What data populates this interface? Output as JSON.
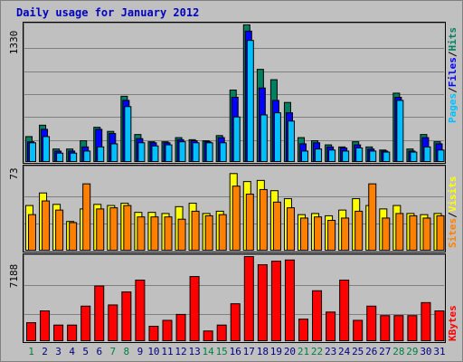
{
  "title": "Daily usage for January 2012",
  "colors": {
    "pages": "#00c0ff",
    "files": "#0000ff",
    "hits": "#008060",
    "visits": "#ffff00",
    "sites": "#ff8000",
    "kbytes": "#ff0000",
    "weekday_label": "#000080",
    "weekend_label": "#008040",
    "separator": "#000000"
  },
  "chart_data": [
    {
      "type": "bar",
      "title": "Pages / Files / Hits",
      "ymax_label": "1330",
      "ylim": [
        0,
        1330
      ],
      "categories": [
        "1",
        "2",
        "3",
        "4",
        "5",
        "6",
        "7",
        "8",
        "9",
        "10",
        "11",
        "12",
        "13",
        "14",
        "15",
        "16",
        "17",
        "18",
        "19",
        "20",
        "21",
        "22",
        "23",
        "24",
        "25",
        "26",
        "27",
        "28",
        "29",
        "30",
        "31"
      ],
      "weekend_days": [
        "1",
        "7",
        "8",
        "14",
        "15",
        "21",
        "22",
        "28",
        "29"
      ],
      "series": [
        {
          "name": "Hits",
          "values": [
            250,
            360,
            130,
            130,
            210,
            340,
            300,
            640,
            270,
            200,
            200,
            240,
            220,
            210,
            260,
            700,
            1330,
            900,
            800,
            580,
            240,
            210,
            170,
            150,
            200,
            150,
            120,
            670,
            130,
            270,
            200
          ]
        },
        {
          "name": "Files",
          "values": [
            200,
            320,
            110,
            110,
            150,
            320,
            280,
            600,
            230,
            190,
            190,
            220,
            210,
            200,
            240,
            630,
            1270,
            720,
            600,
            480,
            180,
            190,
            150,
            140,
            170,
            130,
            110,
            630,
            110,
            240,
            180
          ]
        },
        {
          "name": "Pages",
          "values": [
            190,
            250,
            90,
            90,
            110,
            150,
            180,
            540,
            190,
            160,
            170,
            200,
            190,
            190,
            190,
            440,
            1180,
            460,
            480,
            400,
            110,
            130,
            120,
            110,
            140,
            110,
            100,
            600,
            100,
            150,
            120
          ]
        }
      ]
    },
    {
      "type": "bar",
      "title": "Visits / Sites",
      "ymax_label": "73",
      "ylim": [
        0,
        73
      ],
      "categories": [
        "1",
        "2",
        "3",
        "4",
        "5",
        "6",
        "7",
        "8",
        "9",
        "10",
        "11",
        "12",
        "13",
        "14",
        "15",
        "16",
        "17",
        "18",
        "19",
        "20",
        "21",
        "22",
        "23",
        "24",
        "25",
        "26",
        "27",
        "28",
        "29",
        "30",
        "31"
      ],
      "series": [
        {
          "name": "Visits",
          "values": [
            40,
            51,
            41,
            26,
            37,
            41,
            40,
            42,
            34,
            34,
            33,
            39,
            42,
            33,
            35,
            68,
            61,
            62,
            53,
            46,
            32,
            33,
            31,
            36,
            46,
            40,
            37,
            40,
            33,
            32,
            33
          ]
        },
        {
          "name": "Sites",
          "values": [
            32,
            44,
            36,
            25,
            59,
            37,
            38,
            40,
            30,
            30,
            30,
            28,
            35,
            31,
            32,
            57,
            50,
            54,
            43,
            38,
            29,
            30,
            27,
            29,
            35,
            59,
            29,
            33,
            31,
            29,
            31
          ]
        }
      ]
    },
    {
      "type": "bar",
      "title": "KBytes",
      "ymax_label": "7188",
      "ylim": [
        0,
        7188
      ],
      "categories": [
        "1",
        "2",
        "3",
        "4",
        "5",
        "6",
        "7",
        "8",
        "9",
        "10",
        "11",
        "12",
        "13",
        "14",
        "15",
        "16",
        "17",
        "18",
        "19",
        "20",
        "21",
        "22",
        "23",
        "24",
        "25",
        "26",
        "27",
        "28",
        "29",
        "30",
        "31"
      ],
      "series": [
        {
          "name": "KBytes",
          "values": [
            1600,
            2600,
            1400,
            1400,
            3000,
            4700,
            3100,
            4200,
            5200,
            1300,
            1800,
            2300,
            5500,
            900,
            1400,
            3200,
            7188,
            6500,
            6800,
            6900,
            1900,
            4300,
            2500,
            5200,
            1800,
            3000,
            2200,
            2200,
            2200,
            3300,
            2600
          ]
        }
      ]
    }
  ],
  "legend": {
    "top": {
      "pages": "Pages",
      "files": "Files",
      "hits": "Hits",
      "sep": "/"
    },
    "middle": {
      "sites": "Sites",
      "visits": "Visits",
      "sep": "/"
    },
    "bottom": {
      "kbytes": "KBytes"
    }
  }
}
